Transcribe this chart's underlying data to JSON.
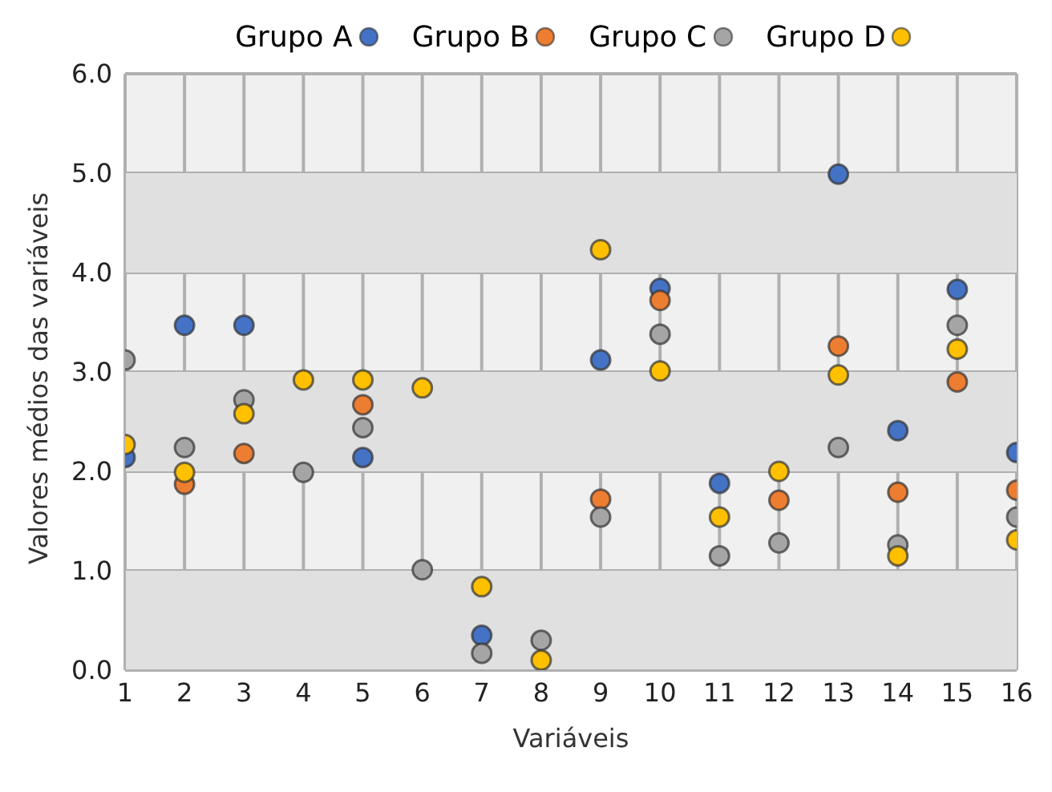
{
  "chart_data": {
    "type": "scatter",
    "xlabel": "Variáveis",
    "ylabel": "Valores médios das variáveis",
    "x": [
      1,
      2,
      3,
      4,
      5,
      6,
      7,
      8,
      9,
      10,
      11,
      12,
      13,
      14,
      15,
      16
    ],
    "series": [
      {
        "name": "Grupo A",
        "color": "#4472c4",
        "values": [
          2.14,
          3.47,
          3.47,
          null,
          2.14,
          null,
          0.35,
          null,
          3.12,
          3.84,
          1.88,
          null,
          4.99,
          2.41,
          3.83,
          2.19
        ]
      },
      {
        "name": "Grupo B",
        "color": "#ed7d31",
        "values": [
          null,
          1.87,
          2.18,
          null,
          2.67,
          null,
          null,
          null,
          1.72,
          3.72,
          null,
          1.71,
          3.26,
          1.79,
          2.9,
          1.81
        ]
      },
      {
        "name": "Grupo C",
        "color": "#a5a5a5",
        "values": [
          3.12,
          2.24,
          2.72,
          1.99,
          2.44,
          1.01,
          0.17,
          0.3,
          1.54,
          3.38,
          1.15,
          1.28,
          2.24,
          1.26,
          3.47,
          1.54
        ]
      },
      {
        "name": "Grupo D",
        "color": "#ffc000",
        "values": [
          2.27,
          1.99,
          2.58,
          2.92,
          2.92,
          2.84,
          0.84,
          0.1,
          4.23,
          3.01,
          1.54,
          2.0,
          2.97,
          1.15,
          3.23,
          1.31
        ]
      }
    ],
    "xlim": [
      1,
      16
    ],
    "xticks": [
      1,
      2,
      3,
      4,
      5,
      6,
      7,
      8,
      9,
      10,
      11,
      12,
      13,
      14,
      15,
      16
    ],
    "ylim": [
      0,
      6
    ],
    "yticks": [
      {
        "value": 0,
        "label": "0.0"
      },
      {
        "value": 1,
        "label": "1.0"
      },
      {
        "value": 2,
        "label": "2.0"
      },
      {
        "value": 3,
        "label": "3.0"
      },
      {
        "value": 4,
        "label": "4.0"
      },
      {
        "value": 5,
        "label": "5.0"
      },
      {
        "value": 6,
        "label": "6.0"
      }
    ],
    "bands": [
      {
        "axis": "y",
        "from": 0,
        "to": 1,
        "color": "#e0e0e0"
      },
      {
        "axis": "y",
        "from": 2,
        "to": 3,
        "color": "#e0e0e0"
      },
      {
        "axis": "y",
        "from": 4,
        "to": 5,
        "color": "#e0e0e0"
      }
    ],
    "grid": true,
    "legend": "top",
    "marker": "circle"
  }
}
